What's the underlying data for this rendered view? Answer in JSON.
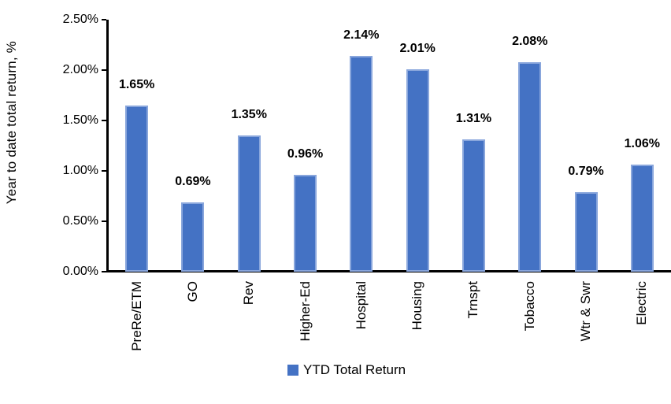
{
  "chart_data": {
    "type": "bar",
    "title": "",
    "ylabel": "Year to date total return, %",
    "xlabel": "",
    "categories": [
      "PreRe/ETM",
      "GO",
      "Rev",
      "Higher-Ed",
      "Hospital",
      "Housing",
      "Trnspt",
      "Tobacco",
      "Wtr & Swr",
      "Electric"
    ],
    "values": [
      1.65,
      0.69,
      1.35,
      0.96,
      2.14,
      2.01,
      1.31,
      2.08,
      0.79,
      1.06
    ],
    "data_labels": [
      "1.65%",
      "0.69%",
      "1.35%",
      "0.96%",
      "2.14%",
      "2.01%",
      "1.31%",
      "2.08%",
      "0.79%",
      "1.06%"
    ],
    "series_name": "YTD Total Return",
    "y_ticks": [
      "0.00%",
      "0.50%",
      "1.00%",
      "1.50%",
      "2.00%",
      "2.50%"
    ],
    "ylim": [
      0,
      2.5
    ],
    "grid": false,
    "legend_position": "bottom",
    "bar_color": "#4472C4",
    "bar_border_color": "#89A6DC",
    "axis_color": "#000000",
    "text_color": "#000000"
  },
  "legend": {
    "items": [
      {
        "label": "YTD Total Return",
        "color": "#4472C4"
      }
    ]
  }
}
